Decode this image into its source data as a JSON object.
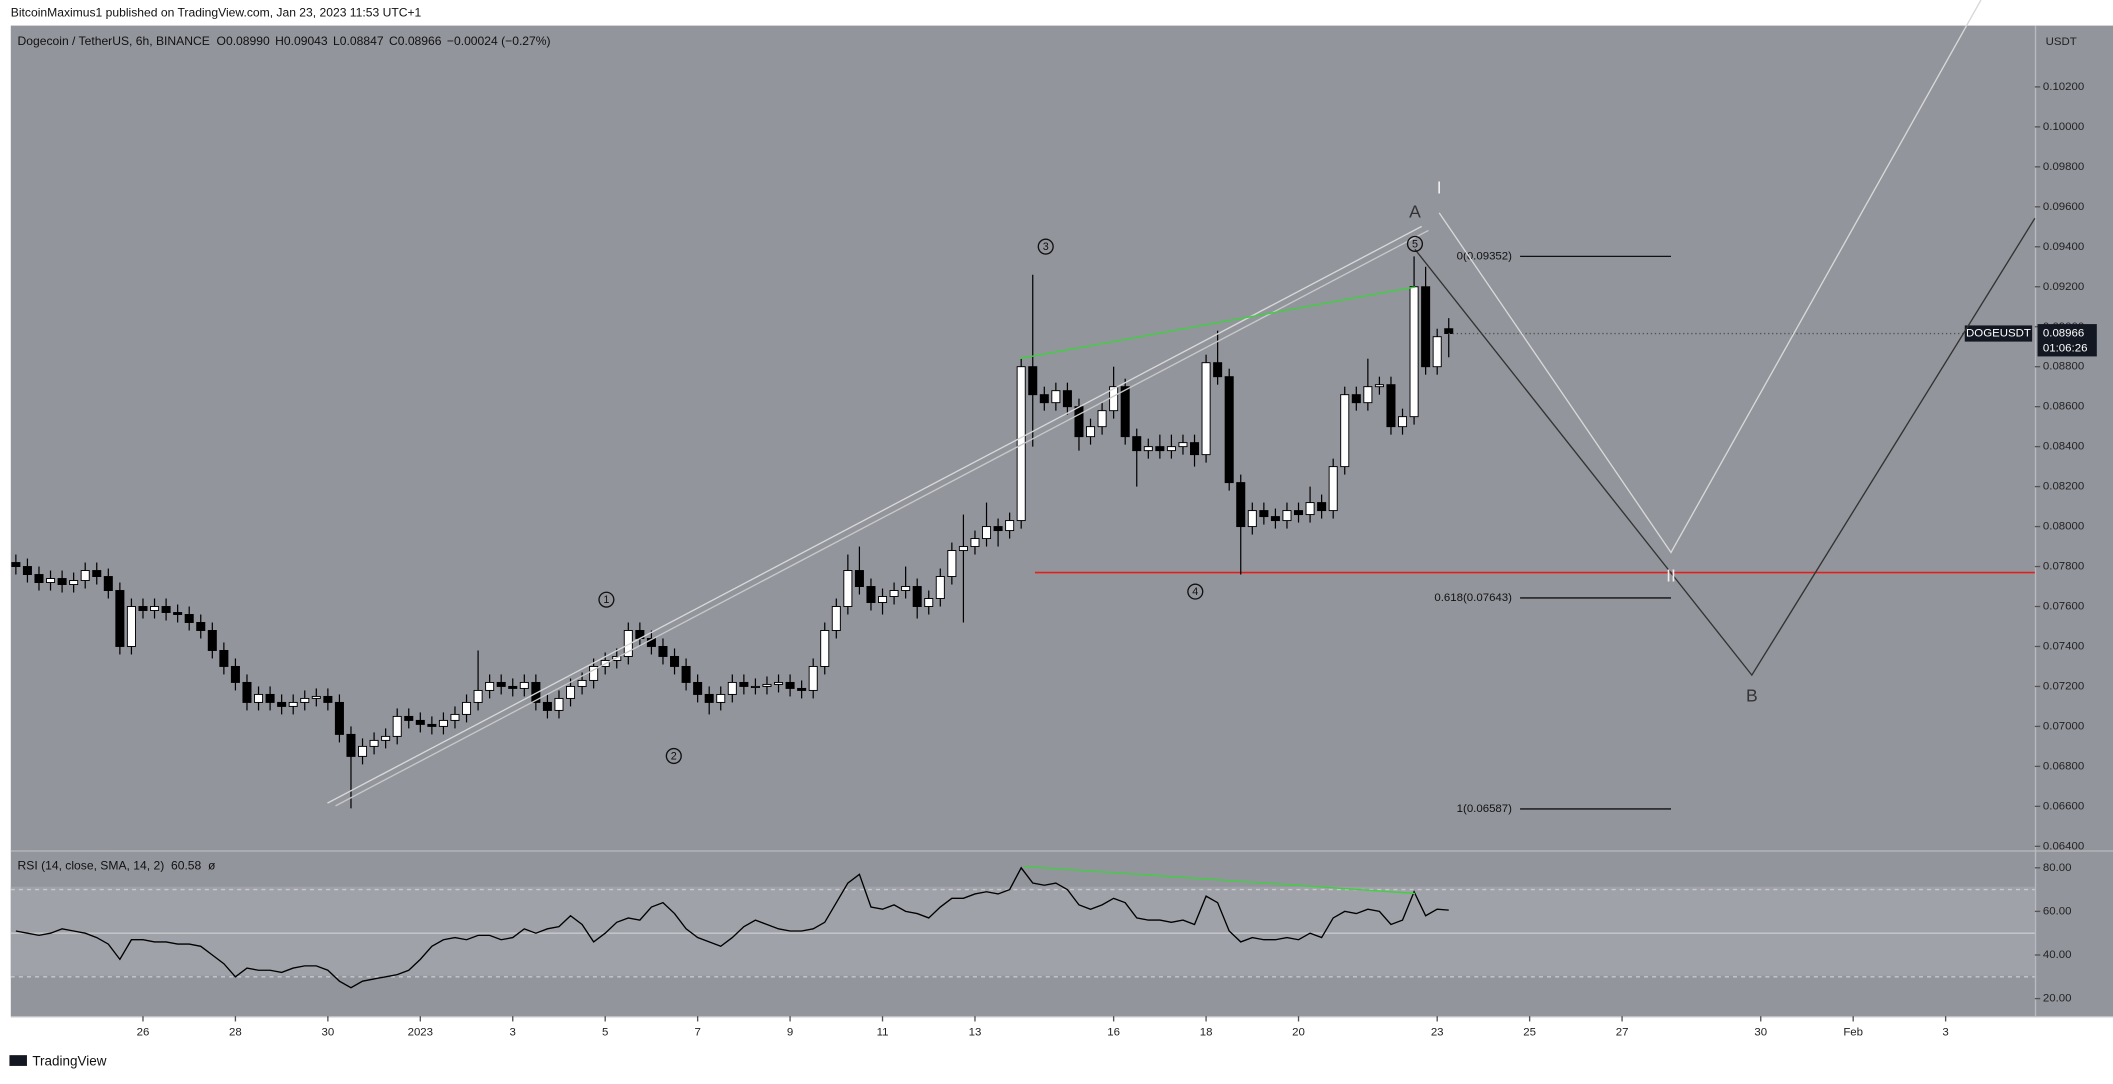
{
  "chart_data": {
    "type": "candlestick",
    "publisher": "BitcoinMaximus1 published on TradingView.com, Jan 23, 2023 11:53 UTC+1",
    "symbol": "Dogecoin / TetherUS, 6h, BINANCE",
    "ohlc": [
      {
        "key": "O",
        "value": "0.08990"
      },
      {
        "key": "H",
        "value": "0.09043"
      },
      {
        "key": "L",
        "value": "0.08847"
      },
      {
        "key": "C",
        "value": "0.08966"
      }
    ],
    "change": "−0.00024 (−0.27%)",
    "currency": "USDT",
    "ticker": "DOGEUSDT",
    "last_price": "0.08966",
    "countdown": "01:06:26",
    "brand": "TradingView",
    "up_color": "#ffffff",
    "down_color": "#000000",
    "xlim": [
      -8.86,
      34.93
    ],
    "xticks": [
      {
        "value": -6,
        "label": "26"
      },
      {
        "value": -4,
        "label": "28"
      },
      {
        "value": -2,
        "label": "30"
      },
      {
        "value": 0,
        "label": "2023"
      },
      {
        "value": 2,
        "label": "3"
      },
      {
        "value": 4,
        "label": "5"
      },
      {
        "value": 6,
        "label": "7"
      },
      {
        "value": 8,
        "label": "9"
      },
      {
        "value": 10,
        "label": "11"
      },
      {
        "value": 12,
        "label": "13"
      },
      {
        "value": 15,
        "label": "16"
      },
      {
        "value": 17,
        "label": "18"
      },
      {
        "value": 19,
        "label": "20"
      },
      {
        "value": 22,
        "label": "23"
      },
      {
        "value": 24,
        "label": "25"
      },
      {
        "value": 26,
        "label": "27"
      },
      {
        "value": 29,
        "label": "30"
      },
      {
        "value": 31,
        "label": "Feb"
      },
      {
        "value": 33,
        "label": "3"
      }
    ],
    "ylim": [
      0.0638,
      0.105
    ],
    "yticks": [
      {
        "value": 0.064,
        "label": "0.06400"
      },
      {
        "value": 0.066,
        "label": "0.06600"
      },
      {
        "value": 0.068,
        "label": "0.06800"
      },
      {
        "value": 0.07,
        "label": "0.07000"
      },
      {
        "value": 0.072,
        "label": "0.07200"
      },
      {
        "value": 0.074,
        "label": "0.07400"
      },
      {
        "value": 0.076,
        "label": "0.07600"
      },
      {
        "value": 0.078,
        "label": "0.07800"
      },
      {
        "value": 0.08,
        "label": "0.08000"
      },
      {
        "value": 0.082,
        "label": "0.08200"
      },
      {
        "value": 0.084,
        "label": "0.08400"
      },
      {
        "value": 0.086,
        "label": "0.08600"
      },
      {
        "value": 0.088,
        "label": "0.08800"
      },
      {
        "value": 0.09,
        "label": "0.09000"
      },
      {
        "value": 0.092,
        "label": "0.09200"
      },
      {
        "value": 0.094,
        "label": "0.09400"
      },
      {
        "value": 0.096,
        "label": "0.09600"
      },
      {
        "value": 0.098,
        "label": "0.09800"
      },
      {
        "value": 0.1,
        "label": "0.10000"
      },
      {
        "value": 0.102,
        "label": "0.10200"
      }
    ],
    "x": [
      -8.75,
      -8.5,
      -8.25,
      -8,
      -7.75,
      -7.5,
      -7.25,
      -7,
      -6.75,
      -6.5,
      -6.25,
      -6,
      -5.75,
      -5.5,
      -5.25,
      -5,
      -4.75,
      -4.5,
      -4.25,
      -4,
      -3.75,
      -3.5,
      -3.25,
      -3,
      -2.75,
      -2.5,
      -2.25,
      -2,
      -1.75,
      -1.5,
      -1.25,
      -1,
      -0.75,
      -0.5,
      -0.25,
      0,
      0.25,
      0.5,
      0.75,
      1,
      1.25,
      1.5,
      1.75,
      2,
      2.25,
      2.5,
      2.75,
      3,
      3.25,
      3.5,
      3.75,
      4,
      4.25,
      4.5,
      4.75,
      5,
      5.25,
      5.5,
      5.75,
      6,
      6.25,
      6.5,
      6.75,
      7,
      7.25,
      7.5,
      7.75,
      8,
      8.25,
      8.5,
      8.75,
      9,
      9.25,
      9.5,
      9.75,
      10,
      10.25,
      10.5,
      10.75,
      11,
      11.25,
      11.5,
      11.75,
      12,
      12.25,
      12.5,
      12.75,
      13,
      13.25,
      13.5,
      13.75,
      14,
      14.25,
      14.5,
      14.75,
      15,
      15.25,
      15.5,
      15.75,
      16,
      16.25,
      16.5,
      16.75,
      17,
      17.25,
      17.5,
      17.75,
      18,
      18.25,
      18.5,
      18.75,
      19,
      19.25,
      19.5,
      19.75,
      20,
      20.25,
      20.5,
      20.75,
      21,
      21.25,
      21.5,
      21.75,
      22,
      22.25
    ],
    "candles": [
      [
        0.0782,
        0.0786,
        0.0776,
        0.078
      ],
      [
        0.078,
        0.0784,
        0.0772,
        0.0776
      ],
      [
        0.0776,
        0.078,
        0.0768,
        0.0772
      ],
      [
        0.0772,
        0.0778,
        0.0768,
        0.0774
      ],
      [
        0.0774,
        0.0778,
        0.0767,
        0.0771
      ],
      [
        0.0771,
        0.0777,
        0.0767,
        0.0773
      ],
      [
        0.0773,
        0.0782,
        0.0769,
        0.0778
      ],
      [
        0.0778,
        0.0782,
        0.0771,
        0.0775
      ],
      [
        0.0775,
        0.0779,
        0.0764,
        0.0768
      ],
      [
        0.0768,
        0.0772,
        0.0736,
        0.074
      ],
      [
        0.074,
        0.0764,
        0.0736,
        0.076
      ],
      [
        0.076,
        0.0764,
        0.0754,
        0.0758
      ],
      [
        0.0758,
        0.0764,
        0.0754,
        0.076
      ],
      [
        0.076,
        0.0764,
        0.0753,
        0.0757
      ],
      [
        0.0757,
        0.0761,
        0.0752,
        0.0756
      ],
      [
        0.0756,
        0.076,
        0.0748,
        0.0752
      ],
      [
        0.0752,
        0.0756,
        0.0744,
        0.0748
      ],
      [
        0.0748,
        0.0752,
        0.0734,
        0.0738
      ],
      [
        0.0738,
        0.0742,
        0.0726,
        0.073
      ],
      [
        0.073,
        0.0734,
        0.0718,
        0.0722
      ],
      [
        0.0722,
        0.0726,
        0.0708,
        0.0712
      ],
      [
        0.0712,
        0.072,
        0.0708,
        0.0716
      ],
      [
        0.0716,
        0.072,
        0.0708,
        0.0712
      ],
      [
        0.0712,
        0.0716,
        0.0706,
        0.071
      ],
      [
        0.071,
        0.0716,
        0.0706,
        0.0712
      ],
      [
        0.0712,
        0.0718,
        0.0708,
        0.0714
      ],
      [
        0.0714,
        0.0719,
        0.071,
        0.0715
      ],
      [
        0.0715,
        0.0719,
        0.0708,
        0.0712
      ],
      [
        0.0712,
        0.0716,
        0.0692,
        0.0696
      ],
      [
        0.0696,
        0.07,
        0.0659,
        0.0685
      ],
      [
        0.0685,
        0.0694,
        0.0681,
        0.069
      ],
      [
        0.069,
        0.0697,
        0.0686,
        0.0693
      ],
      [
        0.0693,
        0.0699,
        0.0689,
        0.0695
      ],
      [
        0.0695,
        0.0709,
        0.0691,
        0.0705
      ],
      [
        0.0705,
        0.0709,
        0.0699,
        0.0703
      ],
      [
        0.0703,
        0.0707,
        0.0697,
        0.0701
      ],
      [
        0.0701,
        0.0705,
        0.0696,
        0.07
      ],
      [
        0.07,
        0.0707,
        0.0696,
        0.0703
      ],
      [
        0.0703,
        0.071,
        0.0699,
        0.0706
      ],
      [
        0.0706,
        0.0716,
        0.0702,
        0.0712
      ],
      [
        0.0712,
        0.0738,
        0.0708,
        0.0718
      ],
      [
        0.0718,
        0.0726,
        0.0714,
        0.0722
      ],
      [
        0.0722,
        0.0726,
        0.0716,
        0.072
      ],
      [
        0.072,
        0.0724,
        0.0715,
        0.0719
      ],
      [
        0.0719,
        0.0726,
        0.0715,
        0.0722
      ],
      [
        0.0722,
        0.0726,
        0.0708,
        0.0712
      ],
      [
        0.0712,
        0.0716,
        0.0704,
        0.0708
      ],
      [
        0.0708,
        0.0718,
        0.0704,
        0.0714
      ],
      [
        0.0714,
        0.0724,
        0.071,
        0.072
      ],
      [
        0.072,
        0.0727,
        0.0716,
        0.0723
      ],
      [
        0.0723,
        0.0734,
        0.0719,
        0.073
      ],
      [
        0.073,
        0.0737,
        0.0726,
        0.0733
      ],
      [
        0.0733,
        0.0739,
        0.0729,
        0.0735
      ],
      [
        0.0735,
        0.0752,
        0.0731,
        0.0748
      ],
      [
        0.0748,
        0.0752,
        0.074,
        0.0744
      ],
      [
        0.0744,
        0.0748,
        0.0736,
        0.074
      ],
      [
        0.074,
        0.0744,
        0.0731,
        0.0735
      ],
      [
        0.0735,
        0.0739,
        0.0726,
        0.073
      ],
      [
        0.073,
        0.0734,
        0.0718,
        0.0722
      ],
      [
        0.0722,
        0.0726,
        0.0712,
        0.0716
      ],
      [
        0.0716,
        0.072,
        0.0706,
        0.0712
      ],
      [
        0.0712,
        0.072,
        0.0708,
        0.0716
      ],
      [
        0.0716,
        0.0726,
        0.0712,
        0.0722
      ],
      [
        0.0722,
        0.0726,
        0.0716,
        0.072
      ],
      [
        0.072,
        0.0724,
        0.0716,
        0.072
      ],
      [
        0.072,
        0.0725,
        0.0716,
        0.0721
      ],
      [
        0.0721,
        0.0726,
        0.0717,
        0.0722
      ],
      [
        0.0722,
        0.0726,
        0.0715,
        0.0719
      ],
      [
        0.0719,
        0.0723,
        0.0714,
        0.0718
      ],
      [
        0.0718,
        0.0734,
        0.0714,
        0.073
      ],
      [
        0.073,
        0.0752,
        0.0726,
        0.0748
      ],
      [
        0.0748,
        0.0764,
        0.0744,
        0.076
      ],
      [
        0.076,
        0.0786,
        0.0756,
        0.0778
      ],
      [
        0.0778,
        0.079,
        0.0766,
        0.077
      ],
      [
        0.077,
        0.0774,
        0.0758,
        0.0762
      ],
      [
        0.0762,
        0.0769,
        0.0756,
        0.0765
      ],
      [
        0.0765,
        0.0772,
        0.0761,
        0.0768
      ],
      [
        0.0768,
        0.078,
        0.0764,
        0.077
      ],
      [
        0.077,
        0.0774,
        0.0754,
        0.076
      ],
      [
        0.076,
        0.0768,
        0.0756,
        0.0764
      ],
      [
        0.0764,
        0.0779,
        0.076,
        0.0775
      ],
      [
        0.0775,
        0.0792,
        0.0771,
        0.0788
      ],
      [
        0.0788,
        0.0806,
        0.0752,
        0.079
      ],
      [
        0.079,
        0.0798,
        0.0786,
        0.0794
      ],
      [
        0.0794,
        0.0812,
        0.079,
        0.08
      ],
      [
        0.08,
        0.0804,
        0.079,
        0.0798
      ],
      [
        0.0798,
        0.0807,
        0.0794,
        0.0803
      ],
      [
        0.0803,
        0.0884,
        0.0799,
        0.088
      ],
      [
        0.088,
        0.0926,
        0.084,
        0.0866
      ],
      [
        0.0866,
        0.087,
        0.0858,
        0.0862
      ],
      [
        0.0862,
        0.0872,
        0.0858,
        0.0868
      ],
      [
        0.0868,
        0.0872,
        0.0856,
        0.086
      ],
      [
        0.086,
        0.0864,
        0.0838,
        0.0845
      ],
      [
        0.0845,
        0.0854,
        0.0841,
        0.085
      ],
      [
        0.085,
        0.0862,
        0.0846,
        0.0858
      ],
      [
        0.0858,
        0.088,
        0.0854,
        0.087
      ],
      [
        0.087,
        0.0874,
        0.0841,
        0.0845
      ],
      [
        0.0845,
        0.0849,
        0.082,
        0.0838
      ],
      [
        0.0838,
        0.0844,
        0.0834,
        0.084
      ],
      [
        0.084,
        0.0846,
        0.0834,
        0.0838
      ],
      [
        0.0838,
        0.0846,
        0.0834,
        0.084
      ],
      [
        0.084,
        0.0846,
        0.0836,
        0.0842
      ],
      [
        0.0842,
        0.0846,
        0.083,
        0.0836
      ],
      [
        0.0836,
        0.0886,
        0.0832,
        0.0882
      ],
      [
        0.0882,
        0.0898,
        0.0871,
        0.0875
      ],
      [
        0.0875,
        0.0879,
        0.0818,
        0.0822
      ],
      [
        0.0822,
        0.0826,
        0.0776,
        0.08
      ],
      [
        0.08,
        0.0812,
        0.0796,
        0.0808
      ],
      [
        0.0808,
        0.0812,
        0.0801,
        0.0805
      ],
      [
        0.0805,
        0.0809,
        0.0799,
        0.0803
      ],
      [
        0.0803,
        0.0812,
        0.0799,
        0.0808
      ],
      [
        0.0808,
        0.0812,
        0.0802,
        0.0806
      ],
      [
        0.0806,
        0.082,
        0.0802,
        0.0812
      ],
      [
        0.0812,
        0.0816,
        0.0804,
        0.0808
      ],
      [
        0.0808,
        0.0834,
        0.0804,
        0.083
      ],
      [
        0.083,
        0.087,
        0.0826,
        0.0866
      ],
      [
        0.0866,
        0.087,
        0.0858,
        0.0862
      ],
      [
        0.0862,
        0.0884,
        0.0858,
        0.087
      ],
      [
        0.087,
        0.0875,
        0.0866,
        0.0871
      ],
      [
        0.0871,
        0.0875,
        0.0846,
        0.085
      ],
      [
        0.085,
        0.0859,
        0.0846,
        0.0855
      ],
      [
        0.0855,
        0.09352,
        0.0851,
        0.092
      ],
      [
        0.092,
        0.093,
        0.0876,
        0.088
      ],
      [
        0.088,
        0.0899,
        0.0876,
        0.0895
      ],
      [
        0.0899,
        0.09043,
        0.08847,
        0.08966
      ]
    ],
    "support_level": 0.0777,
    "fib": [
      {
        "value": 0.09352,
        "label": "0(0.09352)"
      },
      {
        "value": 0.07643,
        "label": "0.618(0.07643)"
      },
      {
        "value": 0.06587,
        "label": "1(0.06587)"
      }
    ],
    "waves": [
      "1",
      "2",
      "3",
      "4",
      "5"
    ],
    "letters": [
      "A",
      "I",
      "II",
      "B"
    ],
    "rsi": {
      "title": "RSI (14, close, SMA, 14, 2)",
      "value_label": "60.58",
      "extra": "ø",
      "color": "#000000",
      "ylim": [
        12.6,
        87.4
      ],
      "yticks": [
        {
          "value": 20,
          "label": "20.00"
        },
        {
          "value": 40,
          "label": "40.00"
        },
        {
          "value": 60,
          "label": "60.00"
        },
        {
          "value": 80,
          "label": "80.00"
        }
      ],
      "values": [
        51,
        50,
        49,
        50,
        52,
        51,
        50,
        48,
        45,
        38,
        47,
        47,
        46,
        46,
        45,
        45,
        44,
        40,
        36,
        30,
        34,
        33,
        33,
        32,
        34,
        35,
        35,
        33,
        28,
        25,
        28,
        29,
        30,
        31,
        33,
        38,
        44,
        47,
        48,
        47,
        49,
        49,
        47,
        48,
        52,
        50,
        52,
        53,
        58,
        54,
        46,
        50,
        55,
        57,
        56,
        62,
        64,
        59,
        52,
        48,
        46,
        44,
        48,
        53,
        56,
        54,
        52,
        51,
        51,
        52,
        55,
        64,
        73,
        77,
        62,
        61,
        63,
        60,
        59,
        57,
        62,
        66,
        66,
        68,
        69,
        68,
        70,
        80,
        73,
        72,
        73,
        70,
        63,
        61,
        63,
        66,
        64,
        57,
        56,
        56,
        55,
        56,
        54,
        67,
        64,
        51,
        46,
        48,
        47,
        47,
        48,
        47,
        50,
        48,
        57,
        60,
        59,
        61,
        60,
        54,
        56,
        69,
        58,
        61,
        60.58
      ]
    }
  }
}
